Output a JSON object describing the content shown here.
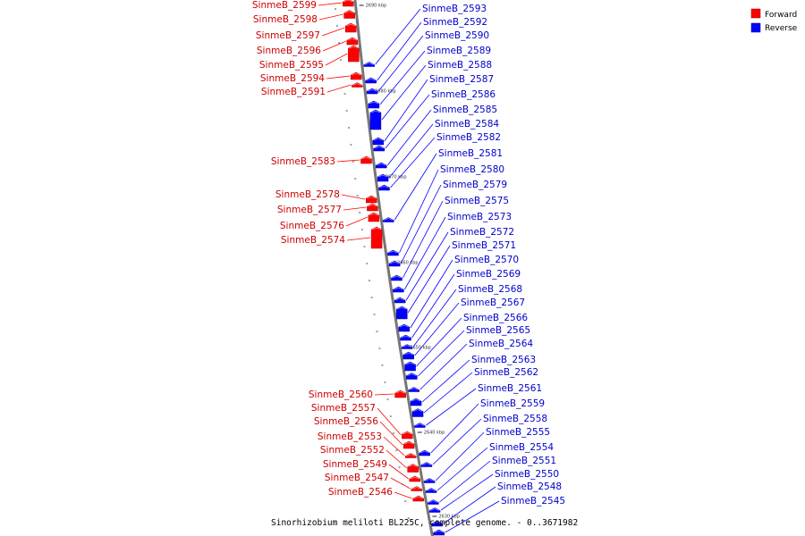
{
  "title": "Sinorhizobium meliloti BL225C, complete genome. - 0..3671982",
  "legend": [
    {
      "label": "Forward",
      "color": "#ff0000"
    },
    {
      "label": "Reverse",
      "color": "#0000ff"
    }
  ],
  "colors": {
    "forward": "#ff0000",
    "forward_text": "#cc0000",
    "reverse": "#0000ff",
    "reverse_text": "#0000cc",
    "backbone": "#777777"
  },
  "position_marks": [
    "2690 kbp",
    "2680 kbp",
    "2670 kbp",
    "2660 kbp",
    "2650 kbp",
    "2640 kbp",
    "2630 kbp"
  ],
  "forward_genes": [
    "SinmeB_2599",
    "SinmeB_2598",
    "SinmeB_2597",
    "SinmeB_2596",
    "SinmeB_2595",
    "SinmeB_2594",
    "SinmeB_2591",
    "SinmeB_2583",
    "SinmeB_2578",
    "SinmeB_2577",
    "SinmeB_2576",
    "SinmeB_2574",
    "SinmeB_2560",
    "SinmeB_2557",
    "SinmeB_2556",
    "SinmeB_2553",
    "SinmeB_2552",
    "SinmeB_2549",
    "SinmeB_2547",
    "SinmeB_2546"
  ],
  "reverse_genes": [
    "SinmeB_2593",
    "SinmeB_2592",
    "SinmeB_2590",
    "SinmeB_2589",
    "SinmeB_2588",
    "SinmeB_2587",
    "SinmeB_2586",
    "SinmeB_2585",
    "SinmeB_2584",
    "SinmeB_2582",
    "SinmeB_2581",
    "SinmeB_2580",
    "SinmeB_2579",
    "SinmeB_2575",
    "SinmeB_2573",
    "SinmeB_2572",
    "SinmeB_2571",
    "SinmeB_2570",
    "SinmeB_2569",
    "SinmeB_2568",
    "SinmeB_2567",
    "SinmeB_2566",
    "SinmeB_2565",
    "SinmeB_2564",
    "SinmeB_2563",
    "SinmeB_2562",
    "SinmeB_2561",
    "SinmeB_2559",
    "SinmeB_2558",
    "SinmeB_2555",
    "SinmeB_2554",
    "SinmeB_2551",
    "SinmeB_2550",
    "SinmeB_2548",
    "SinmeB_2545"
  ]
}
